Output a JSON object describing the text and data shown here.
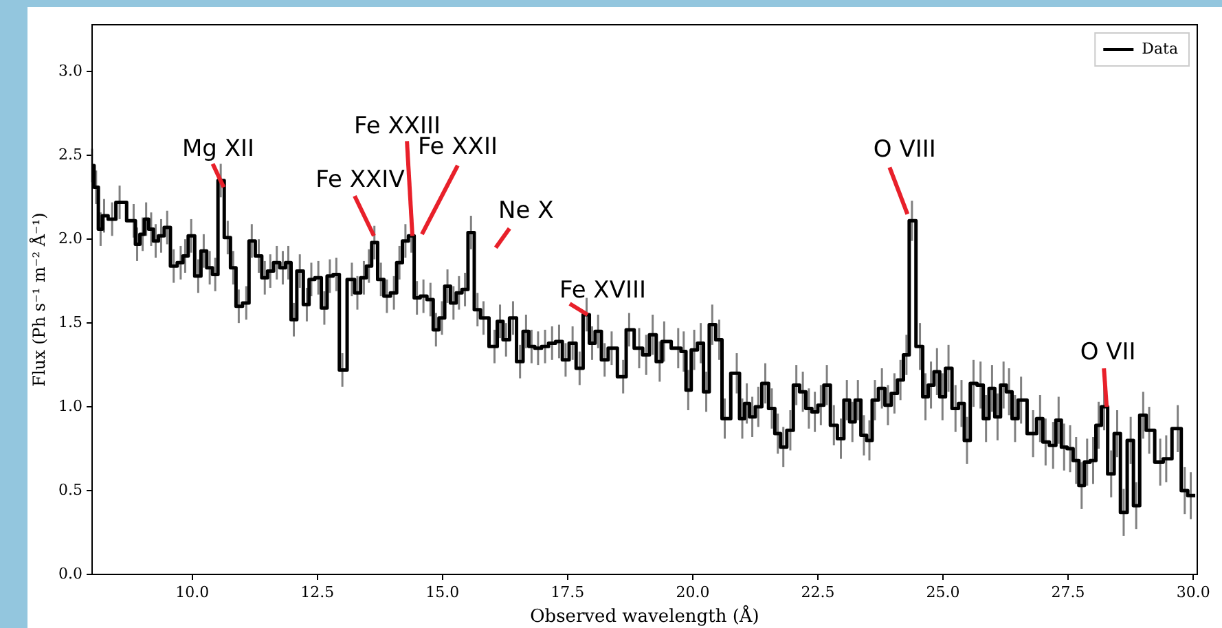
{
  "chart_data": {
    "type": "step",
    "xlabel": "Observed wavelength (Å)",
    "ylabel": "Flux (Ph s⁻¹ m⁻² Å⁻¹)",
    "x": [
      8.0,
      8.08,
      8.17,
      8.24,
      8.4,
      8.55,
      8.83,
      8.9,
      9.01,
      9.08,
      9.18,
      9.27,
      9.38,
      9.5,
      9.63,
      9.77,
      9.86,
      9.98,
      10.12,
      10.23,
      10.35,
      10.46,
      10.57,
      10.71,
      10.82,
      10.93,
      11.08,
      11.19,
      11.33,
      11.45,
      11.56,
      11.69,
      11.81,
      11.92,
      12.03,
      12.15,
      12.29,
      12.38,
      12.52,
      12.64,
      12.75,
      12.88,
      13.0,
      13.19,
      13.3,
      13.43,
      13.53,
      13.64,
      13.77,
      13.89,
      14.03,
      14.14,
      14.26,
      14.38,
      14.49,
      14.62,
      14.76,
      14.87,
      14.99,
      15.1,
      15.22,
      15.33,
      15.45,
      15.57,
      15.7,
      15.82,
      16.04,
      16.15,
      16.27,
      16.41,
      16.55,
      16.67,
      16.78,
      16.91,
      17.05,
      17.19,
      17.33,
      17.46,
      17.6,
      17.74,
      17.88,
      17.99,
      18.11,
      18.24,
      18.38,
      18.61,
      18.73,
      18.93,
      19.07,
      19.2,
      19.34,
      19.43,
      19.71,
      19.82,
      19.91,
      20.03,
      20.16,
      20.27,
      20.39,
      20.53,
      20.64,
      20.88,
      20.99,
      21.08,
      21.19,
      21.31,
      21.45,
      21.58,
      21.7,
      21.81,
      21.95,
      22.07,
      22.2,
      22.32,
      22.44,
      22.56,
      22.68,
      22.82,
      22.96,
      23.08,
      23.19,
      23.3,
      23.42,
      23.53,
      23.64,
      23.78,
      23.9,
      24.03,
      24.15,
      24.27,
      24.38,
      24.54,
      24.65,
      24.76,
      24.88,
      24.99,
      25.11,
      25.25,
      25.37,
      25.48,
      25.61,
      25.75,
      25.86,
      25.98,
      26.09,
      26.21,
      26.32,
      26.44,
      26.56,
      26.8,
      26.94,
      27.05,
      27.2,
      27.31,
      27.42,
      27.54,
      27.66,
      27.77,
      27.88,
      28.0,
      28.11,
      28.22,
      28.36,
      28.48,
      28.61,
      28.75,
      28.86,
      29.0,
      29.12,
      29.34,
      29.46,
      29.69,
      29.83,
      29.95,
      30.04
    ],
    "series": [
      {
        "name": "Data",
        "color": "#000000",
        "values": [
          2.44,
          2.31,
          2.06,
          2.14,
          2.12,
          2.22,
          2.11,
          1.97,
          2.03,
          2.12,
          2.06,
          1.99,
          2.02,
          2.07,
          1.84,
          1.86,
          1.9,
          2.02,
          1.78,
          1.93,
          1.83,
          1.79,
          2.35,
          2.01,
          1.83,
          1.6,
          1.62,
          1.99,
          1.9,
          1.77,
          1.81,
          1.86,
          1.83,
          1.86,
          1.52,
          1.81,
          1.61,
          1.76,
          1.77,
          1.59,
          1.78,
          1.79,
          1.22,
          1.76,
          1.68,
          1.77,
          1.84,
          1.98,
          1.76,
          1.66,
          1.68,
          1.86,
          1.99,
          2.02,
          1.65,
          1.66,
          1.64,
          1.46,
          1.53,
          1.72,
          1.62,
          1.68,
          1.7,
          2.04,
          1.58,
          1.53,
          1.36,
          1.51,
          1.4,
          1.53,
          1.27,
          1.45,
          1.36,
          1.35,
          1.36,
          1.38,
          1.39,
          1.28,
          1.38,
          1.23,
          1.55,
          1.38,
          1.45,
          1.28,
          1.35,
          1.18,
          1.46,
          1.35,
          1.31,
          1.43,
          1.27,
          1.39,
          1.35,
          1.33,
          1.1,
          1.34,
          1.38,
          1.09,
          1.49,
          1.4,
          0.93,
          1.2,
          0.93,
          1.02,
          0.94,
          1.0,
          1.14,
          0.99,
          0.84,
          0.76,
          0.86,
          1.13,
          1.09,
          0.99,
          0.97,
          1.01,
          1.13,
          0.89,
          0.81,
          1.04,
          0.91,
          1.04,
          0.83,
          0.8,
          1.04,
          1.11,
          1.01,
          1.08,
          1.16,
          1.31,
          2.11,
          1.36,
          1.06,
          1.13,
          1.21,
          1.06,
          1.23,
          0.99,
          1.02,
          0.8,
          1.14,
          1.13,
          0.93,
          1.11,
          0.94,
          1.13,
          1.09,
          0.93,
          1.04,
          0.84,
          0.93,
          0.79,
          0.77,
          0.92,
          0.76,
          0.75,
          0.68,
          0.53,
          0.67,
          0.68,
          0.89,
          1.0,
          0.6,
          0.84,
          0.37,
          0.8,
          0.41,
          0.95,
          0.86,
          0.67,
          0.69,
          0.87,
          0.5,
          0.47,
          0.47
        ],
        "errors": [
          0.1,
          0.1,
          0.1,
          0.1,
          0.1,
          0.1,
          0.1,
          0.1,
          0.1,
          0.1,
          0.1,
          0.1,
          0.1,
          0.1,
          0.1,
          0.1,
          0.1,
          0.1,
          0.1,
          0.1,
          0.1,
          0.1,
          0.1,
          0.1,
          0.1,
          0.1,
          0.1,
          0.1,
          0.1,
          0.1,
          0.1,
          0.1,
          0.1,
          0.1,
          0.1,
          0.1,
          0.1,
          0.1,
          0.1,
          0.1,
          0.1,
          0.1,
          0.1,
          0.1,
          0.1,
          0.1,
          0.1,
          0.1,
          0.1,
          0.1,
          0.1,
          0.1,
          0.1,
          0.1,
          0.1,
          0.1,
          0.1,
          0.1,
          0.1,
          0.1,
          0.1,
          0.1,
          0.1,
          0.1,
          0.1,
          0.1,
          0.1,
          0.1,
          0.1,
          0.1,
          0.1,
          0.1,
          0.1,
          0.1,
          0.1,
          0.1,
          0.1,
          0.1,
          0.1,
          0.1,
          0.1,
          0.1,
          0.1,
          0.1,
          0.1,
          0.1,
          0.1,
          0.12,
          0.12,
          0.12,
          0.12,
          0.12,
          0.12,
          0.12,
          0.12,
          0.12,
          0.12,
          0.12,
          0.12,
          0.12,
          0.12,
          0.12,
          0.12,
          0.12,
          0.12,
          0.12,
          0.12,
          0.12,
          0.12,
          0.12,
          0.12,
          0.12,
          0.12,
          0.12,
          0.12,
          0.12,
          0.12,
          0.12,
          0.12,
          0.12,
          0.12,
          0.12,
          0.12,
          0.12,
          0.12,
          0.12,
          0.12,
          0.12,
          0.12,
          0.12,
          0.12,
          0.14,
          0.14,
          0.14,
          0.14,
          0.14,
          0.14,
          0.14,
          0.14,
          0.14,
          0.14,
          0.14,
          0.14,
          0.14,
          0.14,
          0.14,
          0.14,
          0.14,
          0.14,
          0.14,
          0.14,
          0.14,
          0.14,
          0.14,
          0.14,
          0.14,
          0.14,
          0.14,
          0.14,
          0.14,
          0.14,
          0.14,
          0.14,
          0.14,
          0.14,
          0.14,
          0.14,
          0.14,
          0.14,
          0.14,
          0.14,
          0.14,
          0.14,
          0.14,
          null
        ]
      }
    ],
    "xlim": [
      8,
      30.08
    ],
    "ylim": [
      0,
      3.28
    ],
    "xticks": [
      {
        "value": 10,
        "label": "10.0"
      },
      {
        "value": 12.5,
        "label": "12.5"
      },
      {
        "value": 15,
        "label": "15.0"
      },
      {
        "value": 17.5,
        "label": "17.5"
      },
      {
        "value": 20,
        "label": "20.0"
      },
      {
        "value": 22.5,
        "label": "22.5"
      },
      {
        "value": 25,
        "label": "25.0"
      },
      {
        "value": 27.5,
        "label": "27.5"
      },
      {
        "value": 30,
        "label": "30.0"
      }
    ],
    "yticks": [
      {
        "value": 0,
        "label": "0.0"
      },
      {
        "value": 0.5,
        "label": "0.5"
      },
      {
        "value": 1,
        "label": "1.0"
      },
      {
        "value": 1.5,
        "label": "1.5"
      },
      {
        "value": 2,
        "label": "2.0"
      },
      {
        "value": 2.5,
        "label": "2.5"
      },
      {
        "value": 3,
        "label": "3.0"
      }
    ],
    "annotations": [
      {
        "text": "Mg XII",
        "x": 10.63,
        "y": 2.31
      },
      {
        "text": "Fe XXIV",
        "x": 13.63,
        "y": 2.02
      },
      {
        "text": "Fe XXIII",
        "x": 14.4,
        "y": 2.02
      },
      {
        "text": "Fe XXII",
        "x": 14.59,
        "y": 2.03
      },
      {
        "text": "Ne X",
        "x": 15.57,
        "y": 2.04
      },
      {
        "text": "Fe XVIII",
        "x": 17.9,
        "y": 1.55
      },
      {
        "text": "O VIII",
        "x": 24.29,
        "y": 2.15
      },
      {
        "text": "O VII",
        "x": 28.27,
        "y": 1.0
      }
    ],
    "legend": "top right",
    "grid": false
  }
}
